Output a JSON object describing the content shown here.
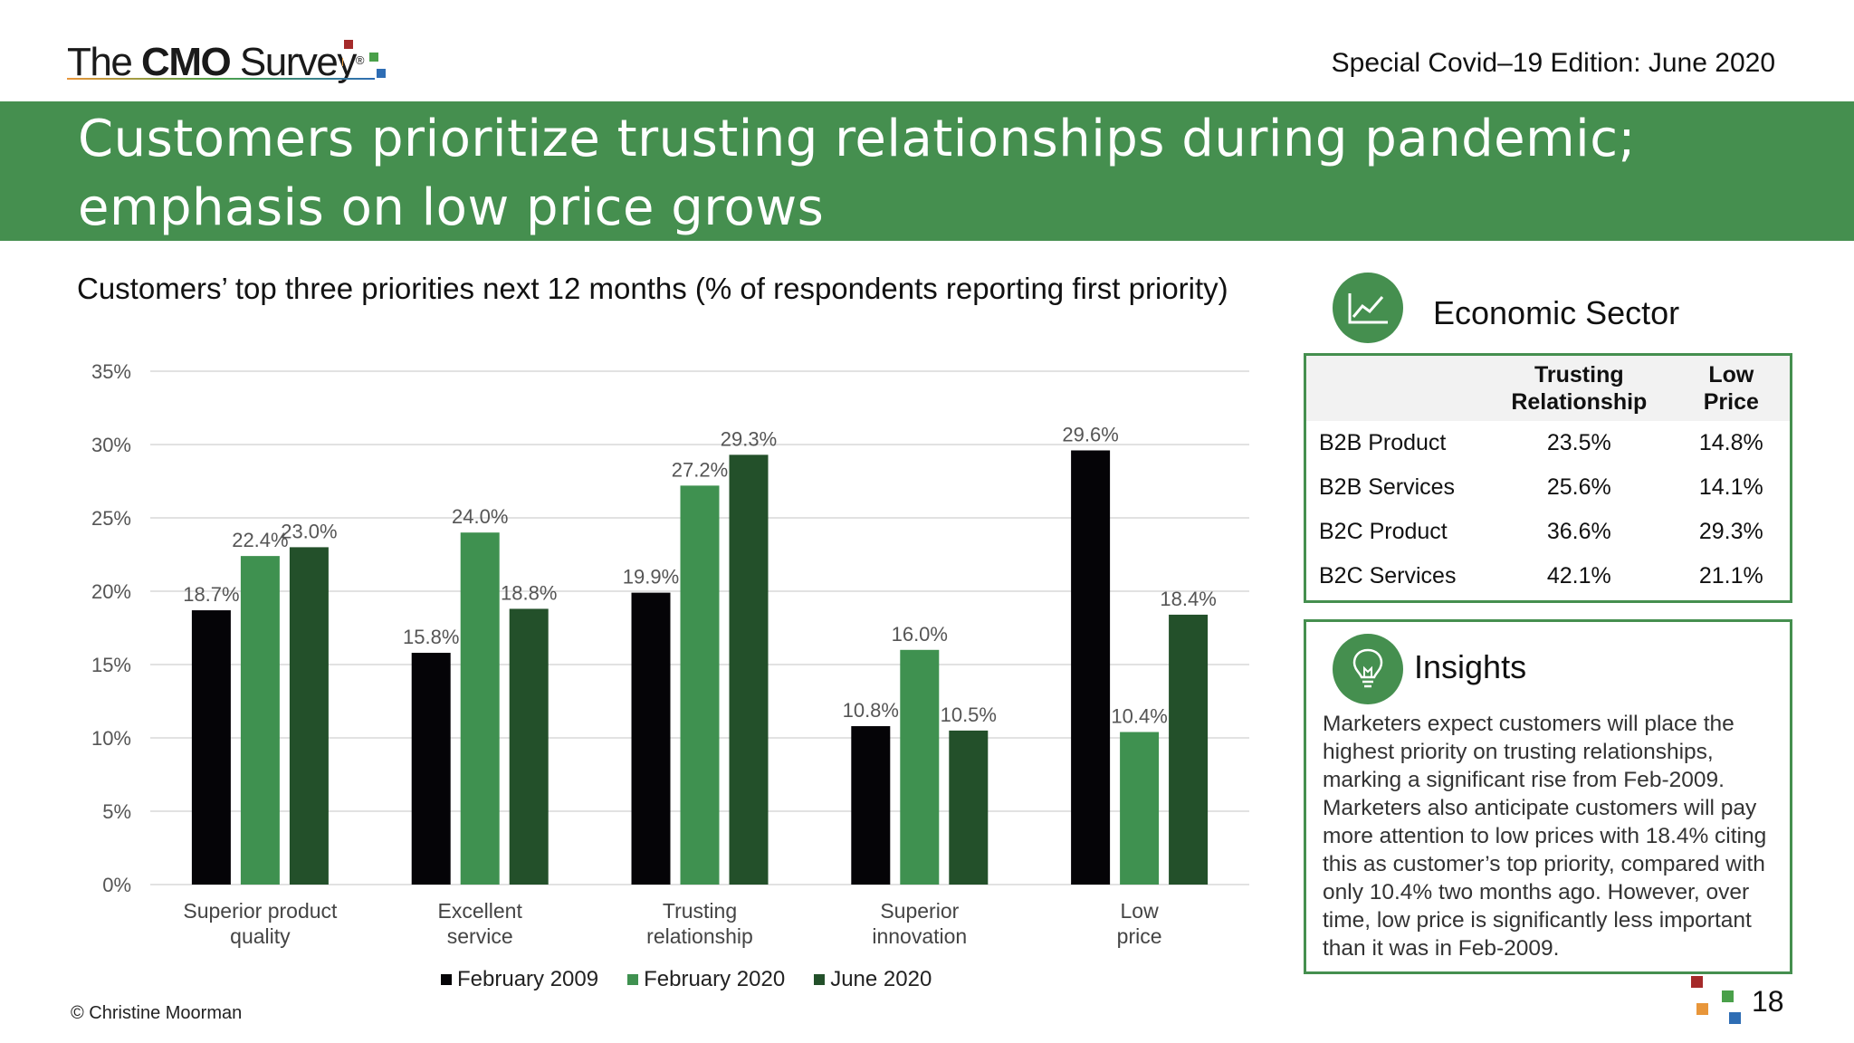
{
  "header": {
    "logo_pre": "The ",
    "logo_bold": "CMO",
    "logo_post": " Survey",
    "logo_reg": "®",
    "edition": "Special Covid–19 Edition: June 2020"
  },
  "banner": {
    "title_line1": "Customers prioritize trusting relationships during pandemic;",
    "title_line2": "emphasis on low price grows"
  },
  "chart_title": "Customers’ top three priorities next 12 months (% of respondents reporting first priority)",
  "chart_data": {
    "type": "bar",
    "categories": [
      [
        "Superior product",
        "quality"
      ],
      [
        "Excellent",
        "service"
      ],
      [
        "Trusting",
        "relationship"
      ],
      [
        "Superior",
        "innovation"
      ],
      [
        "Low",
        "price"
      ]
    ],
    "series": [
      {
        "name": "February 2009",
        "color": "#050407",
        "values": [
          18.7,
          15.8,
          19.9,
          10.8,
          29.6
        ],
        "labels": [
          "18.7%",
          "15.8%",
          "19.9%",
          "10.8%",
          "29.6%"
        ]
      },
      {
        "name": "February 2020",
        "color": "#3f9150",
        "values": [
          22.4,
          24.0,
          27.2,
          16.0,
          10.4
        ],
        "labels": [
          "22.4%",
          "24.0%",
          "27.2%",
          "16.0%",
          "10.4%"
        ]
      },
      {
        "name": "June 2020",
        "color": "#23502a",
        "values": [
          23.0,
          18.8,
          29.3,
          10.5,
          18.4
        ],
        "labels": [
          "23.0%",
          "18.8%",
          "29.3%",
          "10.5%",
          "18.4%"
        ]
      }
    ],
    "yticks": [
      "0%",
      "5%",
      "10%",
      "15%",
      "20%",
      "25%",
      "30%",
      "35%"
    ],
    "ylim": [
      0,
      35
    ],
    "grid": true,
    "legend_position": "bottom"
  },
  "legend": [
    {
      "label": "February 2009",
      "color": "#050407"
    },
    {
      "label": "February 2020",
      "color": "#3f9150"
    },
    {
      "label": "June 2020",
      "color": "#23502a"
    }
  ],
  "copyright": "© Christine Moorman",
  "sector": {
    "icon": "line-chart-icon",
    "title": "Economic Sector",
    "col1_line1": "Trusting",
    "col1_line2": "Relationship",
    "col2_line1": "Low",
    "col2_line2": "Price",
    "rows": [
      {
        "label": "B2B Product",
        "trusting": "23.5%",
        "low_price": "14.8%"
      },
      {
        "label": "B2B Services",
        "trusting": "25.6%",
        "low_price": "14.1%"
      },
      {
        "label": "B2C Product",
        "trusting": "36.6%",
        "low_price": "29.3%"
      },
      {
        "label": "B2C Services",
        "trusting": "42.1%",
        "low_price": "21.1%"
      }
    ]
  },
  "insights": {
    "icon": "lightbulb-icon",
    "title": "Insights",
    "text": "Marketers expect customers will place the highest priority on trusting relationships, marking a significant rise from Feb-2009. Marketers also anticipate customers will pay more attention to low prices with 18.4% citing this as customer’s top priority, compared with only 10.4% two months ago. However, over time, low price is significantly less important than it was in Feb-2009."
  },
  "page_number": "18",
  "colors": {
    "brand_green": "#458f4f",
    "dot_red": "#a52a2a",
    "dot_orange": "#e8963a",
    "dot_green": "#4aa04a",
    "dot_blue": "#2e6db4"
  }
}
